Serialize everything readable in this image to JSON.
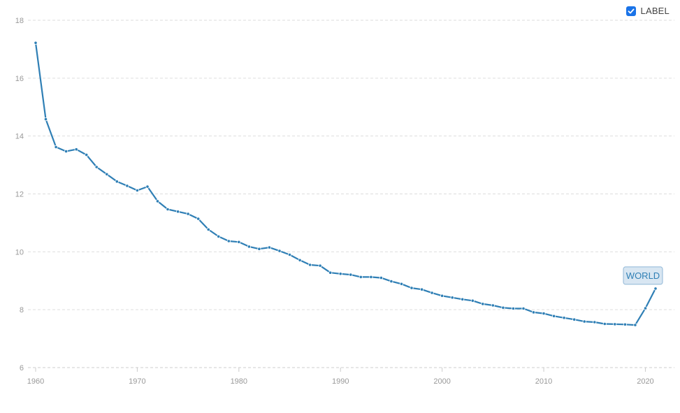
{
  "legend": {
    "label": "LABEL",
    "checked": true
  },
  "chart_data": {
    "type": "line",
    "title": "",
    "xlabel": "",
    "ylabel": "",
    "xlim": [
      1960,
      2021
    ],
    "ylim": [
      6,
      18
    ],
    "xticks": [
      1960,
      1970,
      1980,
      1990,
      2000,
      2010,
      2020
    ],
    "yticks": [
      6,
      8,
      10,
      12,
      14,
      16,
      18
    ],
    "grid": "horizontal-dashed",
    "series": [
      {
        "name": "WORLD",
        "color": "#2f7fb5",
        "x": [
          1960,
          1961,
          1962,
          1963,
          1964,
          1965,
          1966,
          1967,
          1968,
          1969,
          1970,
          1971,
          1972,
          1973,
          1974,
          1975,
          1976,
          1977,
          1978,
          1979,
          1980,
          1981,
          1982,
          1983,
          1984,
          1985,
          1986,
          1987,
          1988,
          1989,
          1990,
          1991,
          1992,
          1993,
          1994,
          1995,
          1996,
          1997,
          1998,
          1999,
          2000,
          2001,
          2002,
          2003,
          2004,
          2005,
          2006,
          2007,
          2008,
          2009,
          2010,
          2011,
          2012,
          2013,
          2014,
          2015,
          2016,
          2017,
          2018,
          2019,
          2020,
          2021
        ],
        "y": [
          17.22,
          14.58,
          13.62,
          13.47,
          13.54,
          13.35,
          12.93,
          12.68,
          12.43,
          12.28,
          12.12,
          12.25,
          11.75,
          11.47,
          11.39,
          11.31,
          11.14,
          10.77,
          10.53,
          10.37,
          10.34,
          10.18,
          10.1,
          10.15,
          10.03,
          9.9,
          9.71,
          9.55,
          9.52,
          9.28,
          9.24,
          9.21,
          9.13,
          9.13,
          9.1,
          8.98,
          8.89,
          8.75,
          8.7,
          8.58,
          8.48,
          8.42,
          8.36,
          8.31,
          8.2,
          8.15,
          8.07,
          8.04,
          8.04,
          7.91,
          7.87,
          7.78,
          7.72,
          7.66,
          7.59,
          7.57,
          7.51,
          7.5,
          7.49,
          7.47,
          8.05,
          8.73
        ]
      }
    ],
    "series_label": {
      "text": "WORLD",
      "border_color": "#8fb6d6",
      "fill_color": "#d8e6f2",
      "text_color": "#2f7fb5"
    },
    "colors": {
      "grid": "#dddddd",
      "axis": "#cccccc",
      "tick_text": "#999999"
    }
  }
}
